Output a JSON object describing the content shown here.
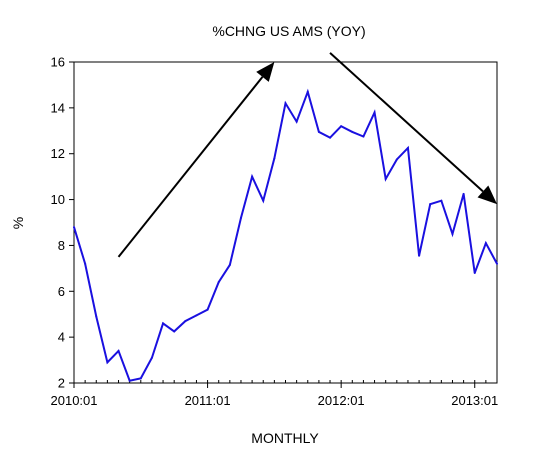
{
  "chart_data": {
    "type": "line",
    "title": "%CHNG US AMS (YOY)",
    "xlabel": "MONTHLY",
    "ylabel": "%",
    "ylim": [
      2,
      16
    ],
    "yticks": [
      2,
      4,
      6,
      8,
      10,
      12,
      14,
      16
    ],
    "xlim": [
      "2010-01",
      "2013-03"
    ],
    "xticks": [
      {
        "date": "2010-01",
        "label": "2010:01"
      },
      {
        "date": "2011-01",
        "label": "2011:01"
      },
      {
        "date": "2012-01",
        "label": "2012:01"
      },
      {
        "date": "2013-01",
        "label": "2013:01"
      }
    ],
    "grid": false,
    "series": [
      {
        "color": "#1a10e0",
        "points": [
          {
            "x": "2010-01",
            "y": 8.8
          },
          {
            "x": "2010-02",
            "y": 7.2
          },
          {
            "x": "2010-03",
            "y": 4.9
          },
          {
            "x": "2010-04",
            "y": 2.9
          },
          {
            "x": "2010-05",
            "y": 3.4
          },
          {
            "x": "2010-06",
            "y": 2.1
          },
          {
            "x": "2010-07",
            "y": 2.2
          },
          {
            "x": "2010-08",
            "y": 3.1
          },
          {
            "x": "2010-09",
            "y": 4.6
          },
          {
            "x": "2010-10",
            "y": 4.25
          },
          {
            "x": "2010-11",
            "y": 4.7
          },
          {
            "x": "2010-12",
            "y": 4.95
          },
          {
            "x": "2011-01",
            "y": 5.2
          },
          {
            "x": "2011-02",
            "y": 6.4
          },
          {
            "x": "2011-03",
            "y": 7.15
          },
          {
            "x": "2011-04",
            "y": 9.2
          },
          {
            "x": "2011-05",
            "y": 11.0
          },
          {
            "x": "2011-06",
            "y": 9.95
          },
          {
            "x": "2011-07",
            "y": 11.8
          },
          {
            "x": "2011-08",
            "y": 14.2
          },
          {
            "x": "2011-09",
            "y": 13.4
          },
          {
            "x": "2011-10",
            "y": 14.7
          },
          {
            "x": "2011-11",
            "y": 12.95
          },
          {
            "x": "2011-12",
            "y": 12.7
          },
          {
            "x": "2012-01",
            "y": 13.2
          },
          {
            "x": "2012-02",
            "y": 12.95
          },
          {
            "x": "2012-03",
            "y": 12.75
          },
          {
            "x": "2012-04",
            "y": 13.8
          },
          {
            "x": "2012-05",
            "y": 10.9
          },
          {
            "x": "2012-06",
            "y": 11.75
          },
          {
            "x": "2012-07",
            "y": 12.25
          },
          {
            "x": "2012-08",
            "y": 7.55
          },
          {
            "x": "2012-09",
            "y": 9.8
          },
          {
            "x": "2012-10",
            "y": 9.95
          },
          {
            "x": "2012-11",
            "y": 8.5
          },
          {
            "x": "2012-12",
            "y": 10.25
          },
          {
            "x": "2013-01",
            "y": 6.8
          },
          {
            "x": "2013-02",
            "y": 8.1
          },
          {
            "x": "2013-03",
            "y": 7.2
          }
        ]
      }
    ],
    "annotations": [
      {
        "type": "arrow",
        "from": {
          "x": "2010-05",
          "y": 7.5
        },
        "to": {
          "x": "2011-07",
          "y": 16.0
        }
      },
      {
        "type": "arrow",
        "from": {
          "x": "2011-12",
          "y": 16.4
        },
        "to": {
          "x": "2013-03",
          "y": 9.8
        }
      }
    ]
  }
}
